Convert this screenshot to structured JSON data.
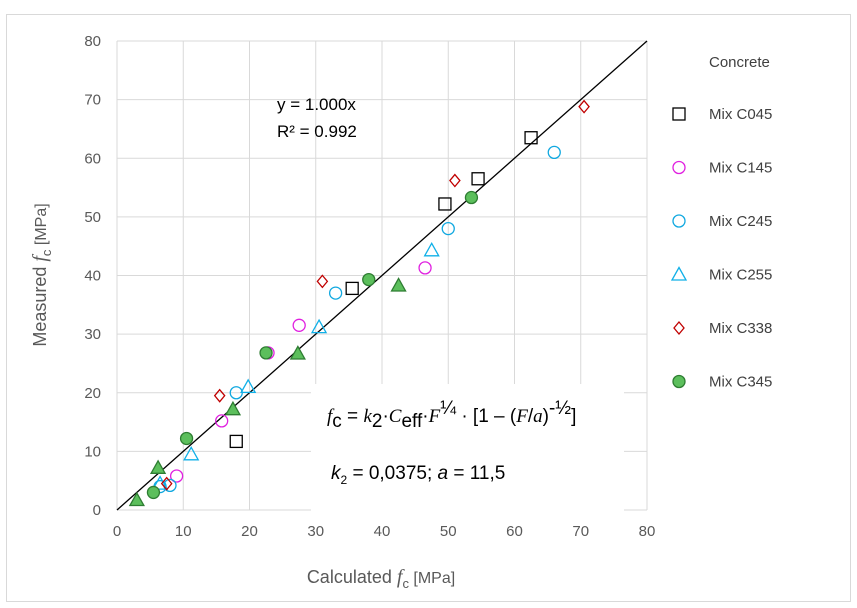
{
  "chart_data": {
    "type": "scatter",
    "title": "",
    "xlabel": {
      "main": "Calculated ",
      "var": "f",
      "sub": "c",
      "unit": " [MPa]"
    },
    "ylabel": {
      "main": "Measured ",
      "var": "f",
      "sub": "c",
      "unit": " [MPa]"
    },
    "xlim": [
      0,
      80
    ],
    "ylim": [
      0,
      80
    ],
    "xticks": [
      "0",
      "10",
      "20",
      "30",
      "40",
      "50",
      "60",
      "70",
      "80"
    ],
    "yticks": [
      "0",
      "10",
      "20",
      "30",
      "40",
      "50",
      "60",
      "70",
      "80"
    ],
    "grid": true,
    "legend": {
      "title": "Concrete",
      "position": "right"
    },
    "trendline": {
      "equation": "y = 1.000x",
      "r2": "R² = 0.992",
      "slope": 1.0
    },
    "formula_box": {
      "line1": {
        "lhs_var": "f",
        "lhs_sub": "c",
        "eq": " = ",
        "k": "k",
        "k_sub": "2",
        "dot1": "·",
        "c": "C",
        "c_sub": "eff",
        "dot2": "·",
        "F": "F",
        "F_sup": "¼",
        "rest": " · [1 – (",
        "F2": "F",
        "slash": "/",
        "a": "a",
        "close": ")",
        "exp": "-½",
        "end": "]"
      },
      "line2": {
        "k": "k",
        "k_sub": "2",
        "k_val": " = 0,0375; ",
        "a": "a",
        "a_val": " = 11,5"
      }
    },
    "series": [
      {
        "name": "Mix C045",
        "marker": "square",
        "color": "#000000",
        "fill": "none",
        "points": [
          [
            18.0,
            11.7
          ],
          [
            35.5,
            37.8
          ],
          [
            49.5,
            52.2
          ],
          [
            54.5,
            56.5
          ],
          [
            62.5,
            63.5
          ]
        ]
      },
      {
        "name": "Mix C145",
        "marker": "circle",
        "color": "#e020e0",
        "fill": "none",
        "points": [
          [
            9.0,
            5.8
          ],
          [
            15.8,
            15.2
          ],
          [
            22.8,
            26.8
          ],
          [
            27.5,
            31.5
          ],
          [
            46.5,
            41.3
          ]
        ]
      },
      {
        "name": "Mix C245",
        "marker": "circle",
        "color": "#10a8e0",
        "fill": "none",
        "points": [
          [
            6.5,
            4.0
          ],
          [
            8.0,
            4.2
          ],
          [
            18.0,
            20.0
          ],
          [
            33.0,
            37.0
          ],
          [
            50.0,
            48.0
          ],
          [
            66.0,
            61.0
          ]
        ]
      },
      {
        "name": "Mix C255",
        "marker": "triangle",
        "color": "#10b0e8",
        "fill": "none",
        "points": [
          [
            6.5,
            4.5
          ],
          [
            11.2,
            9.5
          ],
          [
            19.8,
            21.0
          ],
          [
            30.5,
            31.2
          ],
          [
            47.5,
            44.3
          ]
        ]
      },
      {
        "name": "Mix C338",
        "marker": "diamond",
        "color": "#c00000",
        "fill": "none",
        "points": [
          [
            7.5,
            4.5
          ],
          [
            15.5,
            19.5
          ],
          [
            31.0,
            39.0
          ],
          [
            51.0,
            56.2
          ],
          [
            70.5,
            68.8
          ]
        ]
      },
      {
        "name": "Mix C345",
        "marker": "circle",
        "color": "#2e7d32",
        "fill": "#5cbf5c",
        "points": [
          [
            5.5,
            3.0
          ],
          [
            10.5,
            12.2
          ],
          [
            22.5,
            26.8
          ],
          [
            38.0,
            39.3
          ],
          [
            53.5,
            53.3
          ]
        ]
      },
      {
        "name": "",
        "legend": false,
        "marker": "triangle",
        "color": "#2e7d32",
        "fill": "#5cbf5c",
        "points": [
          [
            3.0,
            1.7
          ],
          [
            6.2,
            7.2
          ],
          [
            17.5,
            17.2
          ],
          [
            27.3,
            26.7
          ],
          [
            42.5,
            38.3
          ]
        ]
      }
    ]
  }
}
